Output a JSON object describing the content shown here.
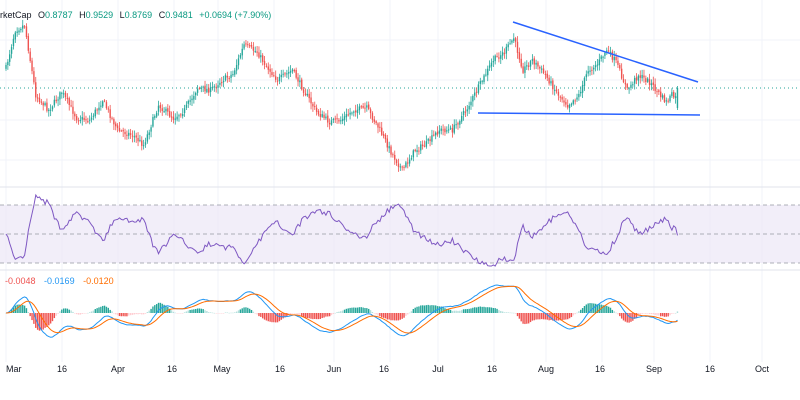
{
  "header": {
    "symbol_fragment": "rketCap",
    "open_label": "O",
    "open_value": "0.8787",
    "high_label": "H",
    "high_value": "0.9529",
    "low_label": "L",
    "low_value": "0.8769",
    "close_label": "C",
    "close_value": "0.9481",
    "change": "+0.0694 (+7.90%)"
  },
  "macd_legend": {
    "histogram": "-0.0048",
    "macd": "-0.0169",
    "signal": "-0.0120"
  },
  "colors": {
    "up": "#26a69a",
    "down": "#ef5350",
    "trendline": "#2962ff",
    "rsi": "#7e57c2",
    "rsi_band": "#ede7f6",
    "macd_line": "#2196f3",
    "signal_line": "#ff6d00"
  },
  "chart_data": [
    {
      "type": "candlestick",
      "x_ticks": [
        "Mar",
        "16",
        "Apr",
        "16",
        "May",
        "16",
        "Jun",
        "16",
        "Jul",
        "16",
        "Aug",
        "16",
        "Sep",
        "16",
        "Oct"
      ],
      "patterns": [
        "descending-triangle"
      ],
      "last": {
        "open": 0.8787,
        "high": 0.9529,
        "low": 0.8769,
        "close": 0.9481
      }
    },
    {
      "type": "line",
      "indicator": "RSI",
      "levels": [
        70,
        50,
        30
      ]
    },
    {
      "type": "line",
      "indicator": "MACD",
      "series_colors": {
        "macd": "#2196f3",
        "signal": "#ff6d00"
      }
    }
  ]
}
